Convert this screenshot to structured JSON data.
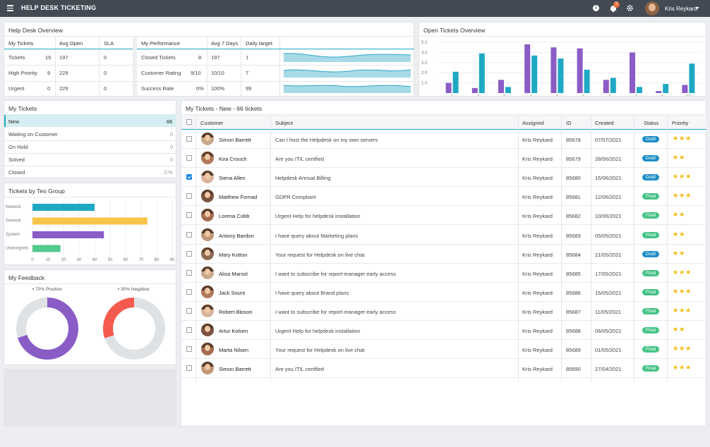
{
  "app": {
    "title": "HELP DESK TICKETING",
    "notifications": "5",
    "user": "Kris Reykard"
  },
  "overview": {
    "title": "Help Desk Overview",
    "headers": [
      "My Tickets",
      "Avg Open",
      "SLA"
    ],
    "rows": [
      {
        "label": "Tickets",
        "value": "15",
        "avg": "197",
        "sla": "0"
      },
      {
        "label": "High Priority",
        "value": "9",
        "avg": "229",
        "sla": "0"
      },
      {
        "label": "Urgent",
        "value": "0",
        "avg": "229",
        "sla": "0"
      }
    ],
    "perf_headers": [
      "My Performance",
      "Avg 7 Days",
      "Daily target"
    ],
    "perf_rows": [
      {
        "label": "Closed Tickets",
        "value": "8",
        "avg": "197",
        "target": "1"
      },
      {
        "label": "Customer Rating",
        "value": "9/10",
        "avg": "10/10",
        "target": "7"
      },
      {
        "label": "Success Rate",
        "value": "0%",
        "avg": "100%",
        "target": "99"
      }
    ]
  },
  "open_overview": {
    "title": "Open Tickets Overview",
    "chart_data": {
      "type": "bar",
      "categories": [
        "1",
        "2",
        "3",
        "4",
        "5",
        "6",
        "7",
        "8",
        "9",
        "10"
      ],
      "series": [
        {
          "values": [
            1.0,
            0.5,
            1.3,
            4.8,
            4.5,
            4.4,
            1.3,
            4.0,
            0.2,
            0.8
          ],
          "color": "#8a5cc6"
        },
        {
          "values": [
            2.1,
            3.9,
            0.6,
            3.7,
            3.4,
            2.3,
            1.5,
            0.6,
            0.9,
            2.9
          ],
          "color": "#1fa8c4"
        }
      ],
      "yticks": [
        "5.0",
        "4.0",
        "3.0",
        "2.0",
        "1.0"
      ],
      "ylim": [
        0,
        5
      ]
    }
  },
  "my_tickets": {
    "title": "My Tickets",
    "items": [
      {
        "label": "New",
        "count": "66"
      },
      {
        "label": "Waiting on Customer",
        "count": "0"
      },
      {
        "label": "On Hold",
        "count": "0"
      },
      {
        "label": "Solved",
        "count": "0"
      },
      {
        "label": "Closed",
        "count": "276"
      }
    ]
  },
  "teo_group": {
    "title": "Tickets by Teo Group",
    "chart_data": {
      "type": "bar",
      "orientation": "horizontal",
      "categories": [
        "Network",
        "General",
        "System",
        "Unassigned"
      ],
      "values": [
        40,
        74,
        46,
        18
      ],
      "colors": [
        "#1fa8c4",
        "#f8c346",
        "#8a5cc6",
        "#52c98d"
      ],
      "xticks": [
        "0",
        "10",
        "20",
        "30",
        "40",
        "50",
        "60",
        "70",
        "80",
        "90"
      ],
      "xlim": [
        0,
        90
      ]
    }
  },
  "feedback": {
    "title": "My Feedback",
    "positive_label": "70% Positive",
    "negative_label": "30% Negative",
    "chart_data": [
      {
        "type": "pie",
        "values": [
          70,
          30
        ],
        "labels": [
          "Positive",
          ""
        ],
        "colors": [
          "#8a5cc6",
          "#dfe2e5"
        ]
      },
      {
        "type": "pie",
        "values": [
          30,
          70
        ],
        "labels": [
          "Negative",
          ""
        ],
        "colors": [
          "#f55a4e",
          "#dfe2e5"
        ]
      }
    ]
  },
  "tickets_table": {
    "title": "My Tickets - New - 66 tickets",
    "headers": [
      "Customer",
      "Subject",
      "Assigned",
      "ID",
      "Created",
      "Status",
      "Priority"
    ],
    "rows": [
      {
        "customer": "Simon Barrett",
        "subject": "Can I host the Helpdesk on my own servers",
        "assigned": "Kris Reykard",
        "id": "85678",
        "created": "07/07/2021",
        "status": "Draft",
        "stars": "★★★",
        "checked": false
      },
      {
        "customer": "Kira Crouch",
        "subject": "Are you ITIL certified",
        "assigned": "Kris Reykard",
        "id": "85679",
        "created": "28/06/2021",
        "status": "Draft",
        "stars": "★★",
        "checked": false
      },
      {
        "customer": "Siena Allen",
        "subject": "Helpdesk Annual Billing",
        "assigned": "Kris Reykard",
        "id": "85680",
        "created": "15/06/2021",
        "status": "Draft",
        "stars": "★★★",
        "checked": true
      },
      {
        "customer": "Matthew Fornad",
        "subject": "GDPR Compliant",
        "assigned": "Kris Reykard",
        "id": "85681",
        "created": "12/06/2021",
        "status": "Final",
        "stars": "★★★",
        "checked": false
      },
      {
        "customer": "Lorena Cobb",
        "subject": "Urgent Help for helpdesk installation",
        "assigned": "Kris Reykard",
        "id": "85682",
        "created": "10/06/2021",
        "status": "Final",
        "stars": "★★",
        "checked": false
      },
      {
        "customer": "Antony Bardon",
        "subject": "I have query about Marketing plans",
        "assigned": "Kris Reykard",
        "id": "85683",
        "created": "05/05/2021",
        "status": "Final",
        "stars": "★★",
        "checked": false
      },
      {
        "customer": "Mary Kotton",
        "subject": "Your request for Helpdesk on live chat",
        "assigned": "Kris Reykard",
        "id": "85684",
        "created": "21/05/2021",
        "status": "Draft",
        "stars": "★★",
        "checked": false
      },
      {
        "customer": "Alisa Marsol",
        "subject": "I want to subscribe for report-manager early access",
        "assigned": "Kris Reykard",
        "id": "85685",
        "created": "17/05/2021",
        "status": "Final",
        "stars": "★★★",
        "checked": false
      },
      {
        "customer": "Jack Sount",
        "subject": "I have query about Brand plans",
        "assigned": "Kris Reykard",
        "id": "85686",
        "created": "15/05/2021",
        "status": "Final",
        "stars": "★★★",
        "checked": false
      },
      {
        "customer": "Robert Bloson",
        "subject": "I want to subscribe for report-manager early access",
        "assigned": "Kris Reykard",
        "id": "85687",
        "created": "11/05/2021",
        "status": "Final",
        "stars": "★★★",
        "checked": false
      },
      {
        "customer": "Artur Kolsen",
        "subject": "Urgent Help for helpdesk installation",
        "assigned": "Kris Reykard",
        "id": "85688",
        "created": "06/05/2021",
        "status": "Final",
        "stars": "★★",
        "checked": false
      },
      {
        "customer": "Marta Nilsen",
        "subject": "Your request for Helpdesk on live chat",
        "assigned": "Kris Reykard",
        "id": "85689",
        "created": "01/05/2021",
        "status": "Final",
        "stars": "★★★",
        "checked": false
      },
      {
        "customer": "Simon Barrett",
        "subject": "Are you ITIL certified",
        "assigned": "Kris Reykard",
        "id": "85690",
        "created": "27/04/2021",
        "status": "Final",
        "stars": "★★★",
        "checked": false
      }
    ]
  },
  "colors": {
    "draft": "#1e8fc6",
    "final": "#45c386",
    "accent": "#1fa8c4",
    "star": "#f5b800"
  }
}
